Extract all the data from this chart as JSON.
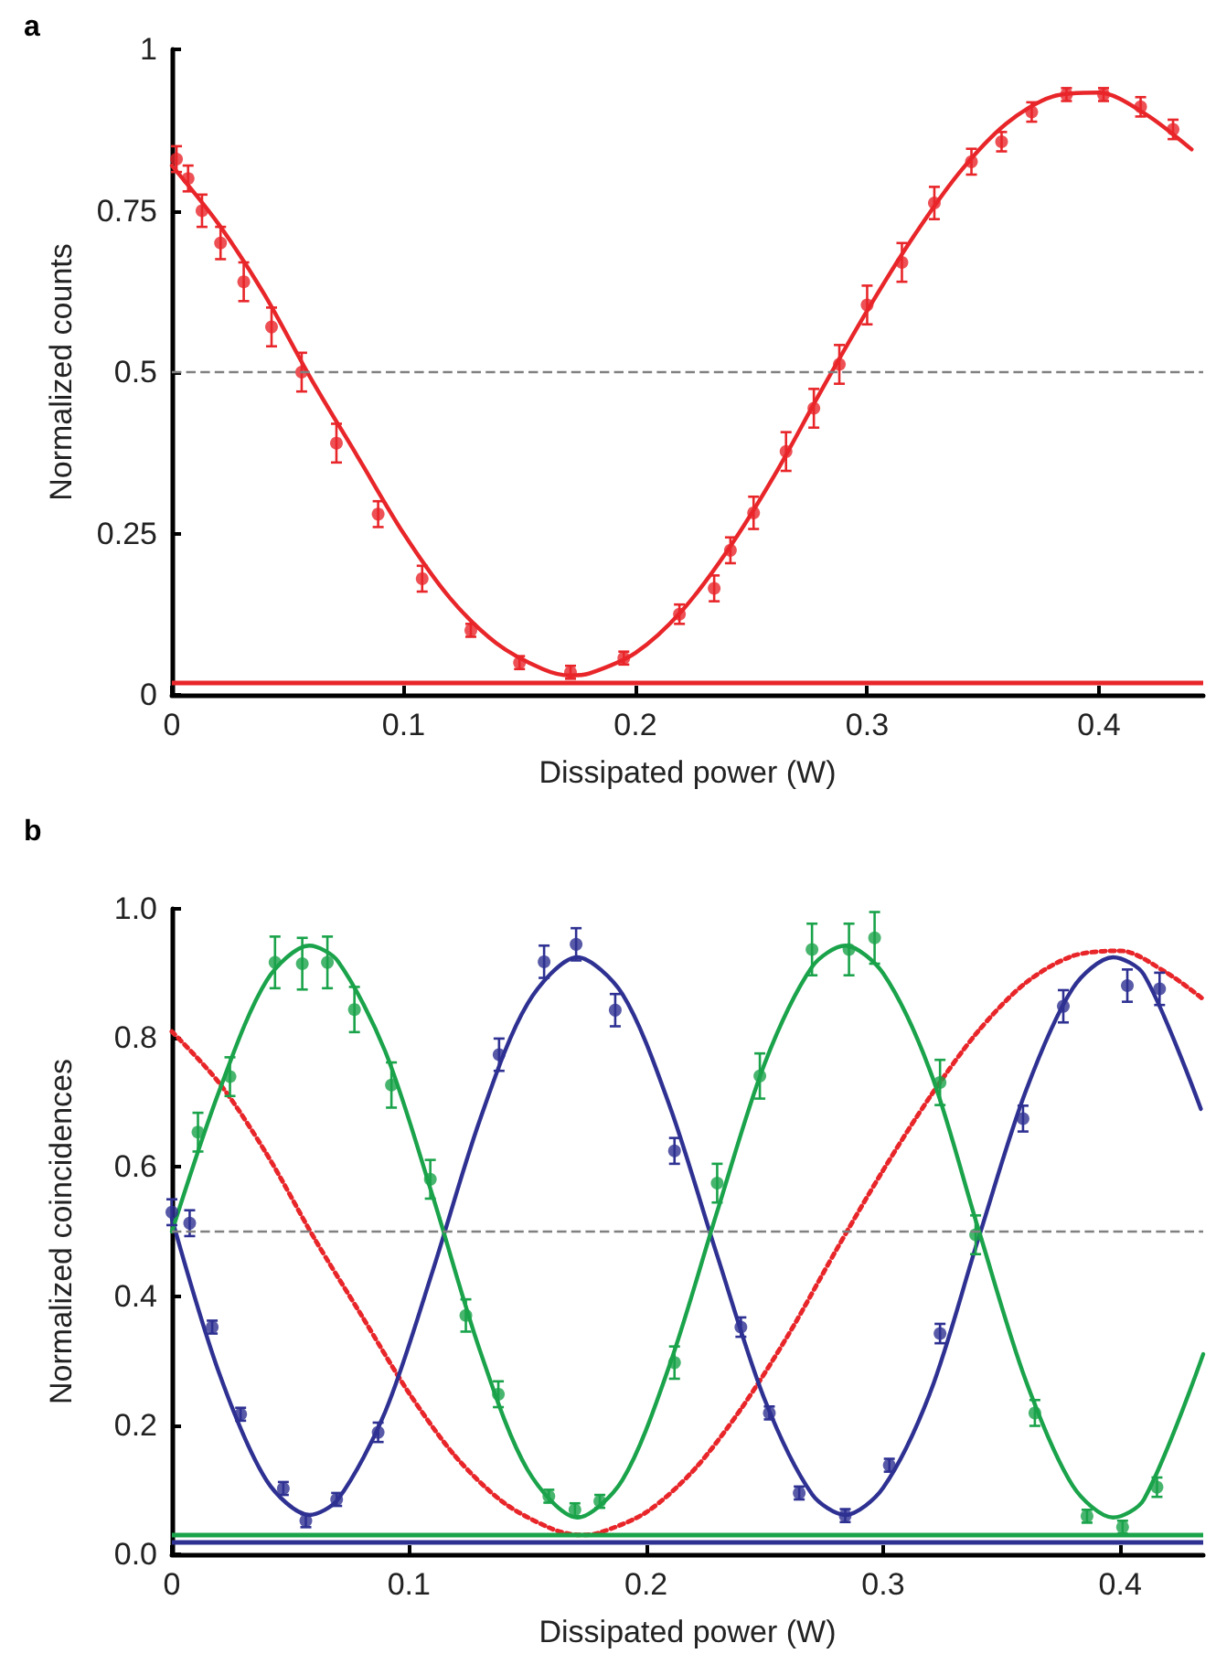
{
  "chart_data": [
    {
      "type": "scatter",
      "title": "a",
      "xlabel": "Dissipated power (W)",
      "ylabel": "Normalized counts",
      "xlim": [
        0,
        0.445
      ],
      "ylim": [
        0,
        1
      ],
      "xticks": [
        0,
        0.1,
        0.2,
        0.3,
        0.4
      ],
      "yticks": [
        0,
        0.25,
        0.5,
        0.75,
        1
      ],
      "series": [
        {
          "color": "#e8262a",
          "marker": "circle",
          "x": [
            0.002,
            0.007,
            0.013,
            0.021,
            0.031,
            0.043,
            0.056,
            0.071,
            0.089,
            0.108,
            0.129,
            0.15,
            0.172,
            0.195,
            0.219,
            0.234,
            0.241,
            0.251,
            0.265,
            0.277,
            0.288,
            0.3,
            0.315,
            0.329,
            0.345,
            0.358,
            0.371,
            0.386,
            0.402,
            0.418,
            0.432
          ],
          "values": [
            0.83,
            0.8,
            0.75,
            0.7,
            0.64,
            0.57,
            0.5,
            0.39,
            0.28,
            0.18,
            0.1,
            0.05,
            0.035,
            0.057,
            0.125,
            0.165,
            0.224,
            0.282,
            0.377,
            0.444,
            0.512,
            0.604,
            0.67,
            0.762,
            0.826,
            0.857,
            0.903,
            0.93,
            0.93,
            0.911,
            0.876
          ],
          "errors": [
            0.02,
            0.02,
            0.025,
            0.025,
            0.03,
            0.03,
            0.03,
            0.03,
            0.02,
            0.02,
            0.01,
            0.01,
            0.01,
            0.01,
            0.015,
            0.02,
            0.02,
            0.025,
            0.03,
            0.03,
            0.03,
            0.03,
            0.03,
            0.025,
            0.02,
            0.015,
            0.015,
            0.01,
            0.01,
            0.015,
            0.015
          ]
        },
        {
          "type": "line",
          "color": "#e8262a",
          "marker": "none",
          "line_style": "solid",
          "x": [
            0,
            0.02,
            0.04,
            0.06,
            0.08,
            0.1,
            0.12,
            0.14,
            0.16,
            0.172,
            0.18,
            0.2,
            0.22,
            0.24,
            0.26,
            0.28,
            0.3,
            0.32,
            0.34,
            0.36,
            0.38,
            0.4,
            0.42,
            0.44
          ],
          "values": [
            0.82,
            0.73,
            0.62,
            0.49,
            0.37,
            0.25,
            0.15,
            0.08,
            0.04,
            0.03,
            0.033,
            0.065,
            0.13,
            0.225,
            0.34,
            0.47,
            0.595,
            0.71,
            0.81,
            0.885,
            0.927,
            0.933,
            0.9,
            0.845
          ]
        }
      ],
      "ref_lines": [
        {
          "axis": "y",
          "value": 0.5,
          "color": "#808080",
          "line_style": "dashed"
        },
        {
          "axis": "y",
          "value": 0.02,
          "color": "#e8262a",
          "line_style": "solid"
        }
      ]
    },
    {
      "type": "scatter",
      "title": "b",
      "xlabel": "Dissipated power (W)",
      "ylabel": "Normalized coincidences",
      "xlim": [
        0,
        0.435
      ],
      "ylim": [
        0,
        1
      ],
      "xticks": [
        0,
        0.1,
        0.2,
        0.3,
        0.4
      ],
      "yticks": [
        {
          "value": 0,
          "label": "0.0"
        },
        {
          "value": 0.2,
          "label": "0.2"
        },
        {
          "value": 0.4,
          "label": "0.4"
        },
        {
          "value": 0.6,
          "label": "0.6"
        },
        {
          "value": 0.8,
          "label": "0.8"
        },
        {
          "value": 1,
          "label": "1.0"
        }
      ],
      "series": [
        {
          "type": "line",
          "color": "#e8262a",
          "marker": "none",
          "line_style": "dotted",
          "x": [
            0,
            0.02,
            0.04,
            0.06,
            0.08,
            0.1,
            0.12,
            0.14,
            0.16,
            0.172,
            0.18,
            0.2,
            0.22,
            0.24,
            0.26,
            0.28,
            0.3,
            0.32,
            0.34,
            0.36,
            0.38,
            0.4,
            0.42,
            0.435
          ],
          "values": [
            0.81,
            0.73,
            0.62,
            0.49,
            0.37,
            0.25,
            0.15,
            0.08,
            0.04,
            0.03,
            0.033,
            0.065,
            0.13,
            0.225,
            0.34,
            0.47,
            0.595,
            0.71,
            0.81,
            0.885,
            0.927,
            0.935,
            0.9,
            0.86
          ]
        },
        {
          "type": "line",
          "color": "#2e3192",
          "marker": "none",
          "line_style": "solid",
          "x": [
            0,
            0.02,
            0.04,
            0.058,
            0.07,
            0.09,
            0.11,
            0.13,
            0.15,
            0.171,
            0.19,
            0.21,
            0.23,
            0.25,
            0.27,
            0.284,
            0.3,
            0.32,
            0.34,
            0.36,
            0.38,
            0.397,
            0.41,
            0.434
          ],
          "values": [
            0.52,
            0.28,
            0.114,
            0.061,
            0.085,
            0.221,
            0.439,
            0.674,
            0.853,
            0.925,
            0.868,
            0.694,
            0.463,
            0.24,
            0.093,
            0.061,
            0.103,
            0.252,
            0.487,
            0.716,
            0.877,
            0.925,
            0.898,
            0.69
          ]
        },
        {
          "type": "line",
          "color": "#1aa34a",
          "marker": "none",
          "line_style": "solid",
          "x": [
            0,
            0.02,
            0.04,
            0.058,
            0.07,
            0.09,
            0.11,
            0.13,
            0.15,
            0.171,
            0.19,
            0.21,
            0.23,
            0.25,
            0.27,
            0.284,
            0.3,
            0.32,
            0.34,
            0.36,
            0.38,
            0.397,
            0.41,
            0.435
          ],
          "values": [
            0.5,
            0.718,
            0.889,
            0.943,
            0.919,
            0.779,
            0.555,
            0.315,
            0.131,
            0.057,
            0.115,
            0.294,
            0.531,
            0.76,
            0.91,
            0.943,
            0.9,
            0.747,
            0.506,
            0.271,
            0.106,
            0.057,
            0.085,
            0.31
          ]
        },
        {
          "color": "#2e3192",
          "marker": "circle",
          "x": [
            0,
            0.0075,
            0.017,
            0.029,
            0.047,
            0.0565,
            0.0695,
            0.087,
            0.138,
            0.157,
            0.1705,
            0.187,
            0.212,
            0.24,
            0.252,
            0.2646,
            0.284,
            0.3026,
            0.324,
            0.359,
            0.376,
            0.403,
            0.4166
          ],
          "values": [
            0.53,
            0.513,
            0.352,
            0.217,
            0.102,
            0.052,
            0.085,
            0.189,
            0.774,
            0.918,
            0.945,
            0.843,
            0.625,
            0.352,
            0.219,
            0.095,
            0.06,
            0.138,
            0.342,
            0.675,
            0.849,
            0.881,
            0.876
          ],
          "errors": [
            0.02,
            0.02,
            0.01,
            0.01,
            0.01,
            0.01,
            0.01,
            0.015,
            0.025,
            0.025,
            0.025,
            0.025,
            0.02,
            0.015,
            0.01,
            0.01,
            0.01,
            0.01,
            0.015,
            0.02,
            0.025,
            0.025,
            0.025
          ]
        },
        {
          "color": "#1aa34a",
          "marker": "circle",
          "x": [
            0.011,
            0.0245,
            0.0435,
            0.055,
            0.0656,
            0.077,
            0.0926,
            0.109,
            0.124,
            0.1377,
            0.159,
            0.17,
            0.1805,
            0.212,
            0.23,
            0.248,
            0.27,
            0.2856,
            0.2964,
            0.324,
            0.339,
            0.364,
            0.386,
            0.401,
            0.4155
          ],
          "values": [
            0.654,
            0.74,
            0.917,
            0.915,
            0.917,
            0.844,
            0.727,
            0.581,
            0.37,
            0.248,
            0.09,
            0.069,
            0.082,
            0.297,
            0.575,
            0.741,
            0.937,
            0.937,
            0.955,
            0.731,
            0.495,
            0.219,
            0.059,
            0.042,
            0.104
          ],
          "errors": [
            0.03,
            0.03,
            0.04,
            0.04,
            0.04,
            0.035,
            0.035,
            0.03,
            0.025,
            0.02,
            0.01,
            0.01,
            0.01,
            0.025,
            0.03,
            0.035,
            0.04,
            0.04,
            0.04,
            0.035,
            0.03,
            0.02,
            0.01,
            0.01,
            0.015
          ]
        }
      ],
      "ref_lines": [
        {
          "axis": "y",
          "value": 0.5,
          "color": "#808080",
          "line_style": "dashed"
        },
        {
          "axis": "y",
          "value": 0.03,
          "color": "#1aa34a",
          "line_style": "solid"
        },
        {
          "axis": "y",
          "value": 0.02,
          "color": "#2e3192",
          "line_style": "solid"
        }
      ]
    }
  ]
}
